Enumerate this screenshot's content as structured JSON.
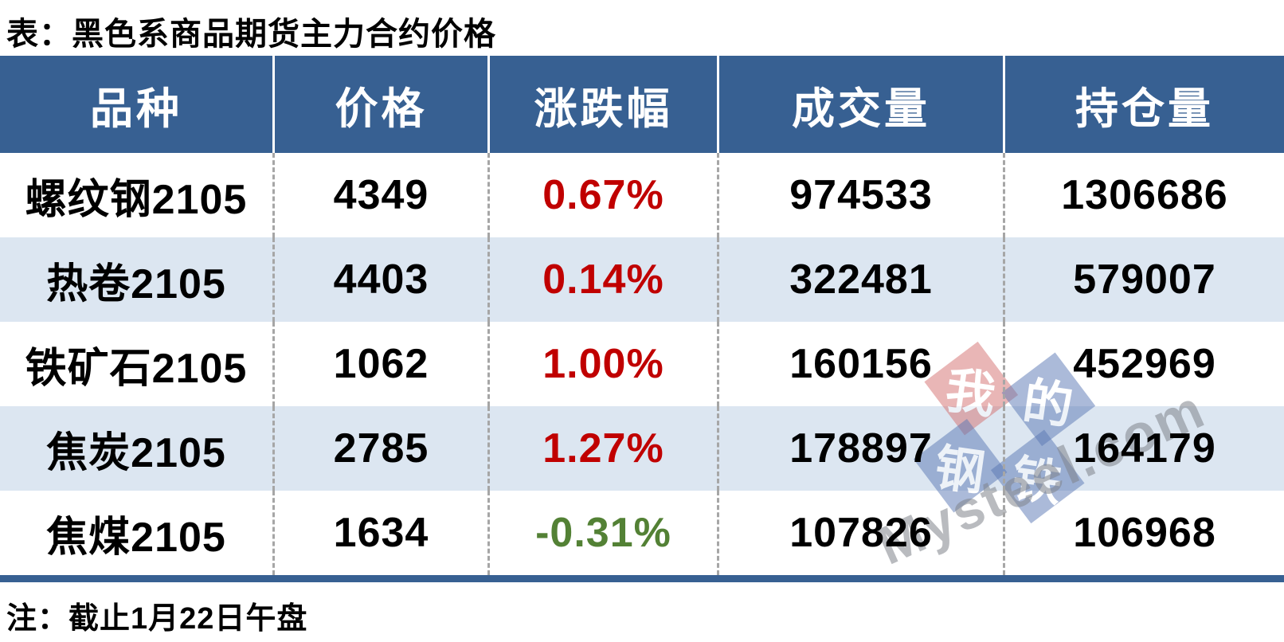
{
  "page": {
    "title": "表：黑色系商品期货主力合约价格",
    "note": "注：截止1月22日午盘"
  },
  "colors": {
    "header_bg": "#376092",
    "row_alt_bg": "#dce6f1",
    "up_red": "#c00000",
    "down_green": "#538135",
    "divider_gray": "#a6a6a6"
  },
  "table": {
    "columns": [
      "品种",
      "价格",
      "涨跌幅",
      "成交量",
      "持仓量"
    ],
    "rows": [
      {
        "variety": "螺纹钢2105",
        "price": "4349",
        "change": "0.67%",
        "change_dir": "up",
        "volume": "974533",
        "open_interest": "1306686"
      },
      {
        "variety": "热卷2105",
        "price": "4403",
        "change": "0.14%",
        "change_dir": "up",
        "volume": "322481",
        "open_interest": "579007"
      },
      {
        "variety": "铁矿石2105",
        "price": "1062",
        "change": "1.00%",
        "change_dir": "up",
        "volume": "160156",
        "open_interest": "452969"
      },
      {
        "variety": "焦炭2105",
        "price": "2785",
        "change": "1.27%",
        "change_dir": "up",
        "volume": "178897",
        "open_interest": "164179"
      },
      {
        "variety": "焦煤2105",
        "price": "1634",
        "change": "-0.31%",
        "change_dir": "down",
        "volume": "107826",
        "open_interest": "106968"
      }
    ]
  },
  "chart_data": {
    "type": "table",
    "title": "表：黑色系商品期货主力合约价格",
    "columns": [
      "品种",
      "价格",
      "涨跌幅",
      "成交量",
      "持仓量"
    ],
    "rows": [
      [
        "螺纹钢2105",
        4349,
        "0.67%",
        974533,
        1306686
      ],
      [
        "热卷2105",
        4403,
        "0.14%",
        322481,
        579007
      ],
      [
        "铁矿石2105",
        1062,
        "1.00%",
        160156,
        452969
      ],
      [
        "焦炭2105",
        2785,
        "1.27%",
        178897,
        164179
      ],
      [
        "焦煤2105",
        1634,
        "-0.31%",
        107826,
        106968
      ]
    ],
    "note": "注：截止1月22日午盘"
  },
  "watermark": {
    "tiles": [
      "我",
      "的",
      "钢",
      "铁"
    ],
    "site": "Mysteel.com"
  }
}
